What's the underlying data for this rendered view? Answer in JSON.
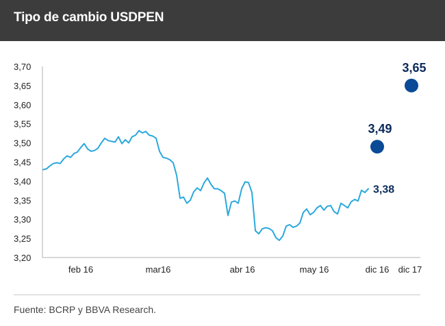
{
  "header": {
    "title": "Tipo de cambio USDPEN"
  },
  "footer": {
    "source": "Fuente: BCRP y BBVA Research."
  },
  "colors": {
    "line": "#2aa8dc",
    "forecast_dot": "#0a4a96",
    "header_bg": "#3c3c3c",
    "text": "#222222",
    "dot_label": "#0a2a5a"
  },
  "chart_data": {
    "type": "line",
    "title": "Tipo de cambio USDPEN",
    "ylim": [
      3.2,
      3.7
    ],
    "yticks": [
      "3,20",
      "3,25",
      "3,30",
      "3,35",
      "3,40",
      "3,45",
      "3,50",
      "3,55",
      "3,60",
      "3,65",
      "3,70"
    ],
    "x_ticks": [
      "feb 16",
      "mar16",
      "abr  16",
      "may  16",
      "dic 16",
      "dic 17"
    ],
    "grid": false,
    "series": [
      {
        "type": "line",
        "values": [
          3.43,
          3.432,
          3.44,
          3.446,
          3.448,
          3.446,
          3.458,
          3.466,
          3.462,
          3.472,
          3.476,
          3.488,
          3.498,
          3.484,
          3.478,
          3.48,
          3.486,
          3.5,
          3.512,
          3.506,
          3.504,
          3.502,
          3.516,
          3.498,
          3.508,
          3.5,
          3.516,
          3.52,
          3.532,
          3.526,
          3.53,
          3.52,
          3.518,
          3.512,
          3.478,
          3.462,
          3.46,
          3.456,
          3.448,
          3.415,
          3.355,
          3.358,
          3.342,
          3.35,
          3.372,
          3.382,
          3.375,
          3.395,
          3.408,
          3.392,
          3.38,
          3.38,
          3.375,
          3.368,
          3.31,
          3.345,
          3.348,
          3.342,
          3.38,
          3.398,
          3.396,
          3.37,
          3.27,
          3.262,
          3.275,
          3.278,
          3.276,
          3.27,
          3.252,
          3.245,
          3.256,
          3.282,
          3.286,
          3.279,
          3.282,
          3.29,
          3.318,
          3.327,
          3.312,
          3.318,
          3.33,
          3.336,
          3.324,
          3.334,
          3.336,
          3.32,
          3.314,
          3.342,
          3.336,
          3.33,
          3.346,
          3.352,
          3.348,
          3.376,
          3.37,
          3.38
        ]
      },
      {
        "type": "points",
        "points": [
          {
            "x": "dic 16",
            "value": 3.49,
            "label": "3,49"
          },
          {
            "x": "dic 17",
            "value": 3.65,
            "label": "3,65"
          }
        ]
      }
    ],
    "annotations": [
      {
        "text": "3,38",
        "value": 3.38
      }
    ]
  }
}
